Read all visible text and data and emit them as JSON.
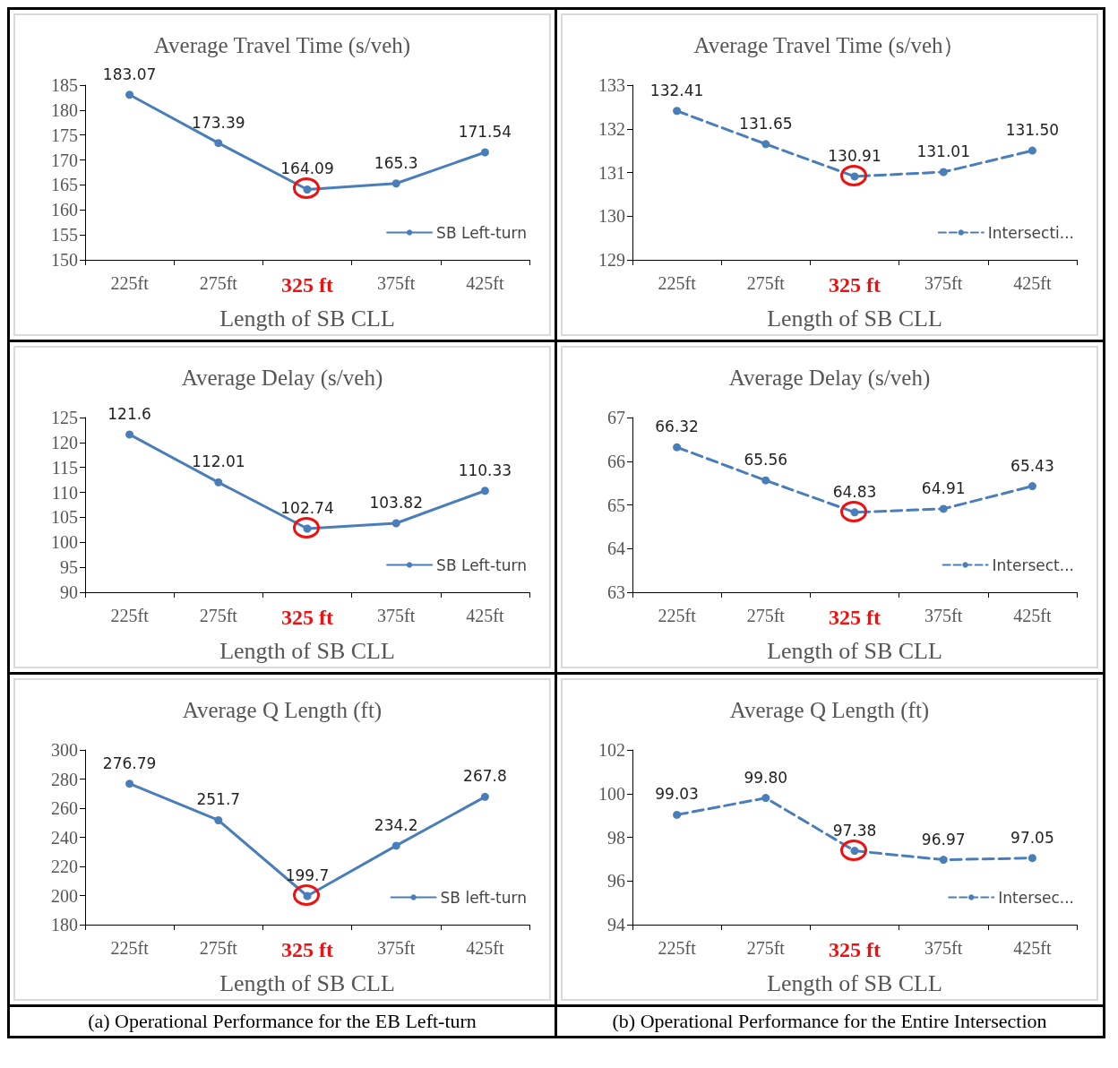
{
  "chart_data": [
    {
      "type": "line",
      "title": "Average Travel Time (s/veh)",
      "xlabel": "Length of SB CLL",
      "categories": [
        "225ft",
        "275ft",
        "325 ft",
        "375ft",
        "425ft"
      ],
      "series": [
        {
          "name": "SB Left-turn",
          "color": "#4a7ebb",
          "values": [
            183.07,
            173.39,
            164.09,
            165.3,
            171.54
          ],
          "value_labels": [
            "183.07",
            "173.39",
            "164.09",
            "165.3",
            "171.54"
          ]
        }
      ],
      "ylim": [
        150,
        185
      ],
      "yticks": [
        150,
        155,
        160,
        165,
        170,
        175,
        180,
        185
      ],
      "legend": "bottom right",
      "marker": "circle",
      "line_style": "solid"
    },
    {
      "type": "line",
      "title": "Average Travel Time (s/veh）",
      "xlabel": "Length of SB CLL",
      "categories": [
        "225ft",
        "275ft",
        "325 ft",
        "375ft",
        "425ft"
      ],
      "series": [
        {
          "name": "Intersecti...",
          "color": "#4a7ebb",
          "values": [
            132.41,
            131.65,
            130.91,
            131.01,
            131.5
          ],
          "value_labels": [
            "132.41",
            "131.65",
            "130.91",
            "131.01",
            "131.50"
          ]
        }
      ],
      "ylim": [
        129,
        133
      ],
      "yticks": [
        129,
        130,
        131,
        132,
        133
      ],
      "legend": "bottom right",
      "marker": "circle",
      "line_style": "dashed"
    },
    {
      "type": "line",
      "title": "Average Delay (s/veh)",
      "xlabel": "Length of SB CLL",
      "categories": [
        "225ft",
        "275ft",
        "325 ft",
        "375ft",
        "425ft"
      ],
      "series": [
        {
          "name": "SB Left-turn",
          "color": "#4a7ebb",
          "values": [
            121.6,
            112.01,
            102.74,
            103.82,
            110.33
          ],
          "value_labels": [
            "121.6",
            "112.01",
            "102.74",
            "103.82",
            "110.33"
          ]
        }
      ],
      "ylim": [
        90,
        125
      ],
      "yticks": [
        90,
        95,
        100,
        105,
        110,
        115,
        120,
        125
      ],
      "legend": "bottom right",
      "marker": "circle",
      "line_style": "solid"
    },
    {
      "type": "line",
      "title": "Average Delay (s/veh)",
      "xlabel": "Length of SB CLL",
      "categories": [
        "225ft",
        "275ft",
        "325 ft",
        "375ft",
        "425ft"
      ],
      "series": [
        {
          "name": "Intersect...",
          "color": "#4a7ebb",
          "values": [
            66.32,
            65.56,
            64.83,
            64.91,
            65.43
          ],
          "value_labels": [
            "66.32",
            "65.56",
            "64.83",
            "64.91",
            "65.43"
          ]
        }
      ],
      "ylim": [
        63,
        67
      ],
      "yticks": [
        63,
        64,
        65,
        66,
        67
      ],
      "legend": "bottom right",
      "marker": "circle",
      "line_style": "dashed"
    },
    {
      "type": "line",
      "title": "Average Q Length (ft)",
      "xlabel": "Length of SB CLL",
      "categories": [
        "225ft",
        "275ft",
        "325 ft",
        "375ft",
        "425ft"
      ],
      "series": [
        {
          "name": "SB left-turn",
          "color": "#4a7ebb",
          "values": [
            276.79,
            251.7,
            199.7,
            234.2,
            267.8
          ],
          "value_labels": [
            "276.79",
            "251.7",
            "199.7",
            "234.2",
            "267.8"
          ]
        }
      ],
      "ylim": [
        180,
        300
      ],
      "yticks": [
        180,
        200,
        220,
        240,
        260,
        280,
        300
      ],
      "legend": "bottom right",
      "marker": "circle",
      "line_style": "solid",
      "annotations": [
        "(a) Operational Performance for the EB Left-turn"
      ]
    },
    {
      "type": "line",
      "title": "Average Q Length (ft)",
      "xlabel": "Length of SB CLL",
      "categories": [
        "225ft",
        "275ft",
        "325 ft",
        "375ft",
        "425ft"
      ],
      "series": [
        {
          "name": "Intersec...",
          "color": "#4a7ebb",
          "values": [
            99.03,
            99.8,
            97.38,
            96.97,
            97.05
          ],
          "value_labels": [
            "99.03",
            "99.80",
            "97.38",
            "96.97",
            "97.05"
          ]
        }
      ],
      "ylim": [
        94,
        102
      ],
      "yticks": [
        94,
        96,
        98,
        100,
        102
      ],
      "legend": "bottom right",
      "marker": "circle",
      "line_style": "dashed",
      "annotations": [
        "(b) Operational Performance for the Entire Intersection"
      ]
    }
  ]
}
